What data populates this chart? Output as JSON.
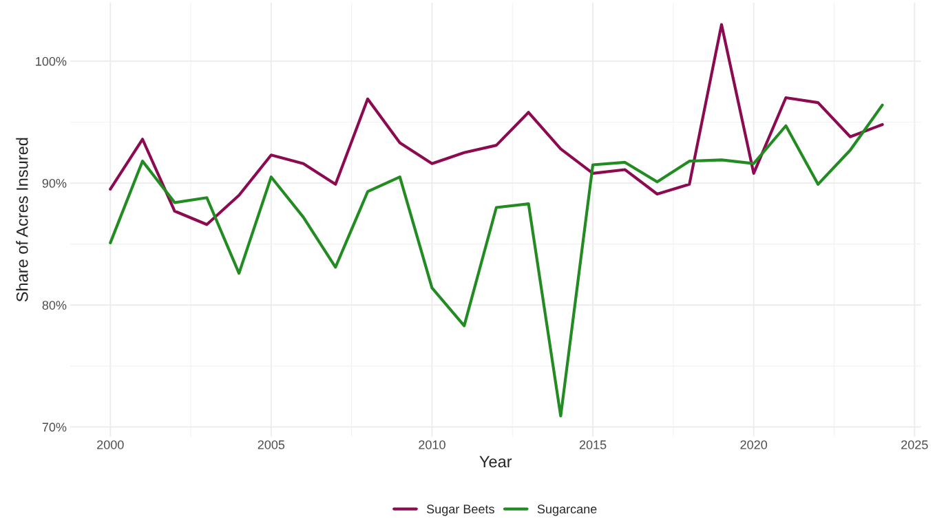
{
  "chart_data": {
    "type": "line",
    "xlabel": "Year",
    "ylabel": "Share of Acres Insured",
    "x": [
      2000,
      2001,
      2002,
      2003,
      2004,
      2005,
      2006,
      2007,
      2008,
      2009,
      2010,
      2011,
      2012,
      2013,
      2014,
      2015,
      2016,
      2017,
      2018,
      2019,
      2020,
      2021,
      2022,
      2023,
      2024
    ],
    "series": [
      {
        "name": "Sugar Beets",
        "color": "#8b0a50",
        "values": [
          89.5,
          93.6,
          87.7,
          86.6,
          89.0,
          92.3,
          91.6,
          89.9,
          96.9,
          93.3,
          91.6,
          92.5,
          93.1,
          95.8,
          92.8,
          90.8,
          91.1,
          89.1,
          89.9,
          103.0,
          90.8,
          97.0,
          96.6,
          93.8,
          94.8
        ]
      },
      {
        "name": "Sugarcane",
        "color": "#228b22",
        "values": [
          85.1,
          91.8,
          88.4,
          88.8,
          82.6,
          90.5,
          87.2,
          83.1,
          89.3,
          90.5,
          81.4,
          78.3,
          88.0,
          88.3,
          70.9,
          91.5,
          91.7,
          90.1,
          91.8,
          91.9,
          91.6,
          94.7,
          89.9,
          92.7,
          96.4
        ]
      }
    ],
    "xlim": [
      1998.75,
      2025.2
    ],
    "xticks": [
      2000,
      2005,
      2010,
      2015,
      2020,
      2025
    ],
    "ylim": [
      69.2,
      104.8
    ],
    "yticks": [
      {
        "value": 70,
        "label": "70%"
      },
      {
        "value": 80,
        "label": "80%"
      },
      {
        "value": 90,
        "label": "90%"
      },
      {
        "value": 100,
        "label": "100%"
      }
    ],
    "grid": true,
    "legend": "bottom",
    "line_style": "solid",
    "marker": "none"
  }
}
